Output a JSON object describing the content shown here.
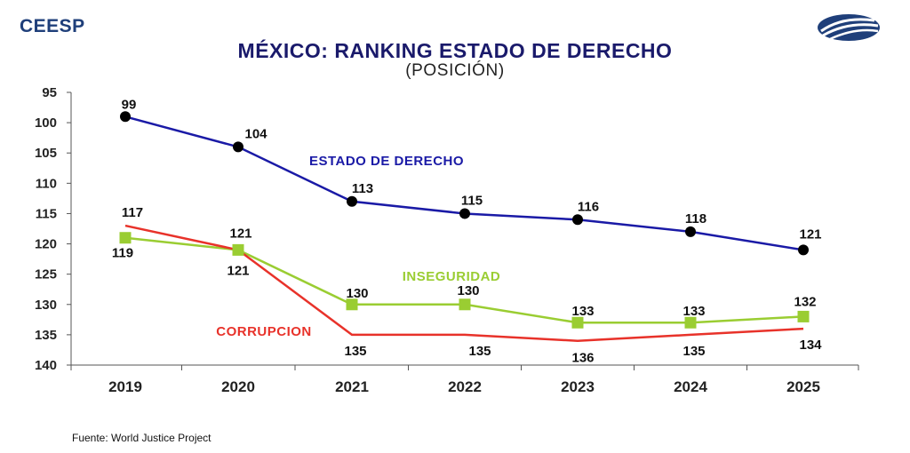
{
  "header": {
    "brand": "CEESP",
    "logo_icon": "ceesp-globe-logo"
  },
  "chart_data": {
    "type": "line",
    "title": "MÉXICO: RANKING ESTADO DE DERECHO",
    "subtitle": "(POSICIÓN)",
    "categories": [
      "2019",
      "2020",
      "2021",
      "2022",
      "2023",
      "2024",
      "2025"
    ],
    "ylim": [
      95,
      140
    ],
    "y_inverted": true,
    "y_ticks": [
      95,
      100,
      105,
      110,
      115,
      120,
      125,
      130,
      135,
      140
    ],
    "grid": false,
    "series": [
      {
        "name": "ESTADO DE DERECHO",
        "key": "estado",
        "values": [
          99,
          104,
          113,
          115,
          116,
          118,
          121
        ],
        "color": "#1a1aa6",
        "label_color": "#1a1aa6",
        "marker": "circle"
      },
      {
        "name": "INSEGURIDAD",
        "key": "inseguridad",
        "values": [
          119,
          121,
          130,
          130,
          133,
          133,
          132
        ],
        "color": "#9acd32",
        "label_color": "#9acd32",
        "marker": "square"
      },
      {
        "name": "CORRUPCION",
        "key": "corrupcion",
        "values": [
          117,
          121,
          135,
          135,
          136,
          135,
          134
        ],
        "color": "#e8322a",
        "label_color": "#e8322a",
        "marker": "none"
      }
    ]
  },
  "footer": {
    "source": "Fuente: World Justice Project"
  }
}
